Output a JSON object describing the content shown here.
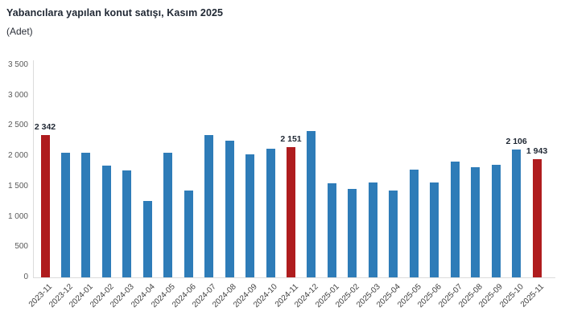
{
  "header": {
    "title": "Yabancılara yapılan konut satışı, Kasım 2025",
    "unit_label": "(Adet)"
  },
  "chart_data": {
    "type": "bar",
    "title": "Yabancılara yapılan konut satışı, Kasım 2025",
    "ylabel": "(Adet)",
    "xlabel": "",
    "ylim": [
      0,
      3500
    ],
    "grid": false,
    "legend": false,
    "x_label_rotation": -45,
    "categories": [
      "2023-11",
      "2023-12",
      "2024-01",
      "2024-02",
      "2024-03",
      "2024-04",
      "2024-05",
      "2024-06",
      "2024-07",
      "2024-08",
      "2024-09",
      "2024-10",
      "2024-11",
      "2024-12",
      "2025-01",
      "2025-02",
      "2025-03",
      "2025-04",
      "2025-05",
      "2025-06",
      "2025-07",
      "2025-08",
      "2025-09",
      "2025-10",
      "2025-11"
    ],
    "values": [
      2342,
      2060,
      2060,
      1845,
      1770,
      1265,
      2060,
      1430,
      2345,
      2260,
      2030,
      2125,
      2151,
      2415,
      1545,
      1455,
      1570,
      1435,
      1775,
      1560,
      1915,
      1810,
      1860,
      2106,
      1943
    ],
    "highlighted_categories": [
      "2023-11",
      "2024-11",
      "2025-11"
    ],
    "value_labels": [
      {
        "category": "2023-11",
        "label": "2 342"
      },
      {
        "category": "2024-11",
        "label": "2 151"
      },
      {
        "category": "2025-10",
        "label": "2 106"
      },
      {
        "category": "2025-11",
        "label": "1 943"
      }
    ],
    "y_tick_values": [
      0,
      500,
      1000,
      1500,
      2000,
      2500,
      3000,
      3500
    ],
    "y_tick_labels": [
      "0",
      "500",
      "1 000",
      "1 500",
      "2 000",
      "2 500",
      "3 000",
      "3 500"
    ],
    "bar_color": "#2e7cb8",
    "highlight_color": "#af1c1e"
  }
}
